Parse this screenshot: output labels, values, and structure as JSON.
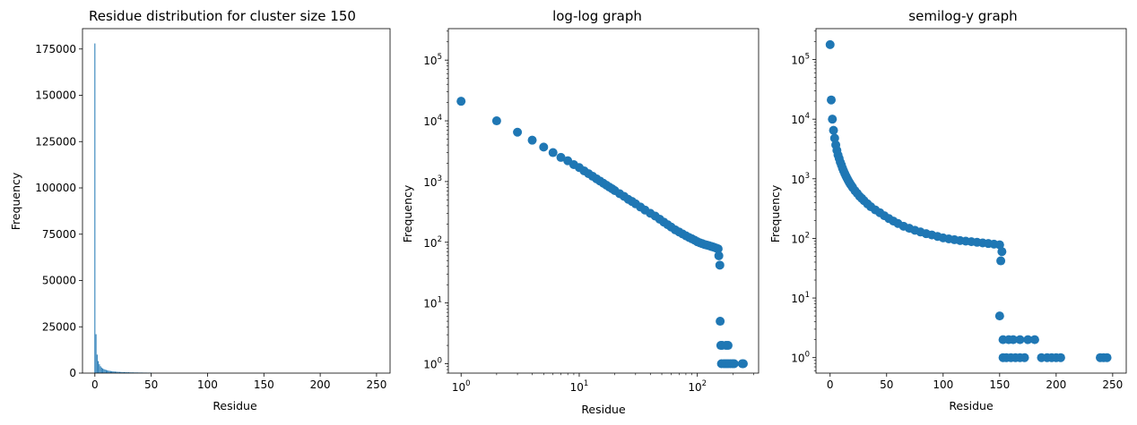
{
  "chart_data": [
    {
      "type": "bar",
      "title": "Residue distribution for cluster size 150",
      "xlabel": "Residue",
      "ylabel": "Frequency",
      "xlim": [
        -11,
        262
      ],
      "ylim": [
        0,
        186000
      ],
      "xticks": [
        0,
        50,
        100,
        150,
        200,
        250
      ],
      "yticks": [
        0,
        25000,
        50000,
        75000,
        100000,
        125000,
        150000,
        175000
      ],
      "color": "#1f77b4",
      "x": [
        0,
        1,
        2,
        3,
        4,
        5,
        6,
        7,
        8,
        9,
        10,
        11,
        12,
        13,
        14,
        15,
        16,
        17,
        18,
        19,
        20,
        21,
        22,
        23,
        24,
        25,
        26,
        27,
        28,
        29,
        30,
        31,
        32,
        33,
        34,
        35,
        36,
        37,
        38,
        39,
        40,
        41,
        42,
        43,
        44,
        45,
        46,
        47,
        48,
        49,
        50
      ],
      "values": [
        178000,
        21000,
        10000,
        6500,
        4800,
        3700,
        3000,
        2500,
        2200,
        1900,
        1700,
        1500,
        1350,
        1220,
        1110,
        1020,
        940,
        870,
        810,
        760,
        710,
        670,
        630,
        600,
        570,
        540,
        510,
        490,
        470,
        450,
        430,
        410,
        395,
        380,
        365,
        350,
        340,
        330,
        318,
        307,
        297,
        287,
        278,
        270,
        262,
        255,
        248,
        241,
        235,
        229,
        223
      ]
    },
    {
      "type": "scatter",
      "title": "log-log graph",
      "xlabel": "Residue",
      "ylabel": "Frequency",
      "xscale": "log",
      "yscale": "log",
      "xlim": [
        0.78,
        330
      ],
      "ylim": [
        0.7,
        330000
      ],
      "xticks": [
        "10^0",
        "10^1",
        "10^2"
      ],
      "yticks": [
        "10^0",
        "10^1",
        "10^2",
        "10^3",
        "10^4",
        "10^5"
      ],
      "color": "#1f77b4",
      "points": [
        [
          1,
          21000
        ],
        [
          2,
          10000
        ],
        [
          3,
          6500
        ],
        [
          4,
          4800
        ],
        [
          5,
          3700
        ],
        [
          6,
          3000
        ],
        [
          7,
          2500
        ],
        [
          8,
          2200
        ],
        [
          9,
          1900
        ],
        [
          10,
          1700
        ],
        [
          11,
          1500
        ],
        [
          12,
          1350
        ],
        [
          13,
          1220
        ],
        [
          14,
          1110
        ],
        [
          15,
          1020
        ],
        [
          16,
          940
        ],
        [
          17,
          870
        ],
        [
          18,
          810
        ],
        [
          19,
          760
        ],
        [
          20,
          710
        ],
        [
          22,
          630
        ],
        [
          24,
          570
        ],
        [
          26,
          510
        ],
        [
          28,
          470
        ],
        [
          30,
          430
        ],
        [
          33,
          380
        ],
        [
          36,
          340
        ],
        [
          40,
          300
        ],
        [
          44,
          270
        ],
        [
          48,
          240
        ],
        [
          52,
          215
        ],
        [
          56,
          195
        ],
        [
          60,
          178
        ],
        [
          65,
          160
        ],
        [
          70,
          148
        ],
        [
          75,
          137
        ],
        [
          80,
          128
        ],
        [
          85,
          120
        ],
        [
          90,
          114
        ],
        [
          95,
          108
        ],
        [
          100,
          102
        ],
        [
          105,
          98
        ],
        [
          110,
          95
        ],
        [
          115,
          92
        ],
        [
          120,
          90
        ],
        [
          125,
          88
        ],
        [
          130,
          86
        ],
        [
          135,
          84
        ],
        [
          140,
          82
        ],
        [
          145,
          80
        ],
        [
          150,
          78
        ],
        [
          152,
          60
        ],
        [
          155,
          42
        ],
        [
          156,
          5
        ],
        [
          158,
          2
        ],
        [
          162,
          2
        ],
        [
          175,
          2
        ],
        [
          182,
          2
        ],
        [
          160,
          1
        ],
        [
          168,
          1
        ],
        [
          175,
          1
        ],
        [
          182,
          1
        ],
        [
          190,
          1
        ],
        [
          198,
          1
        ],
        [
          205,
          1
        ],
        [
          240,
          1
        ],
        [
          245,
          1
        ]
      ]
    },
    {
      "type": "scatter",
      "title": "semilog-y graph",
      "xlabel": "Residue",
      "ylabel": "Frequency",
      "yscale": "log",
      "xlim": [
        -12.5,
        262
      ],
      "ylim": [
        0.55,
        330000
      ],
      "xticks": [
        0,
        50,
        100,
        150,
        200,
        250
      ],
      "yticks": [
        "10^0",
        "10^1",
        "10^2",
        "10^3",
        "10^4",
        "10^5"
      ],
      "color": "#1f77b4",
      "points": [
        [
          0,
          178000
        ],
        [
          1,
          21000
        ],
        [
          2,
          10000
        ],
        [
          3,
          6500
        ],
        [
          4,
          4800
        ],
        [
          5,
          3700
        ],
        [
          6,
          3000
        ],
        [
          7,
          2500
        ],
        [
          8,
          2200
        ],
        [
          9,
          1900
        ],
        [
          10,
          1700
        ],
        [
          11,
          1500
        ],
        [
          12,
          1350
        ],
        [
          13,
          1220
        ],
        [
          14,
          1110
        ],
        [
          15,
          1020
        ],
        [
          16,
          940
        ],
        [
          17,
          870
        ],
        [
          18,
          810
        ],
        [
          19,
          760
        ],
        [
          20,
          710
        ],
        [
          22,
          630
        ],
        [
          24,
          570
        ],
        [
          26,
          510
        ],
        [
          28,
          470
        ],
        [
          30,
          430
        ],
        [
          33,
          380
        ],
        [
          36,
          340
        ],
        [
          40,
          300
        ],
        [
          44,
          270
        ],
        [
          48,
          240
        ],
        [
          52,
          215
        ],
        [
          56,
          195
        ],
        [
          60,
          178
        ],
        [
          65,
          160
        ],
        [
          70,
          148
        ],
        [
          75,
          137
        ],
        [
          80,
          128
        ],
        [
          85,
          120
        ],
        [
          90,
          114
        ],
        [
          95,
          108
        ],
        [
          100,
          102
        ],
        [
          105,
          98
        ],
        [
          110,
          95
        ],
        [
          115,
          92
        ],
        [
          120,
          90
        ],
        [
          125,
          88
        ],
        [
          130,
          86
        ],
        [
          135,
          84
        ],
        [
          140,
          82
        ],
        [
          145,
          80
        ],
        [
          150,
          78
        ],
        [
          152,
          60
        ],
        [
          151,
          42
        ],
        [
          150,
          5
        ],
        [
          153,
          2
        ],
        [
          158,
          2
        ],
        [
          162,
          2
        ],
        [
          168,
          2
        ],
        [
          175,
          2
        ],
        [
          181,
          2
        ],
        [
          153,
          1
        ],
        [
          156,
          1
        ],
        [
          160,
          1
        ],
        [
          164,
          1
        ],
        [
          168,
          1
        ],
        [
          172,
          1
        ],
        [
          187,
          1
        ],
        [
          192,
          1
        ],
        [
          196,
          1
        ],
        [
          200,
          1
        ],
        [
          204,
          1
        ],
        [
          239,
          1
        ],
        [
          242,
          1
        ],
        [
          245,
          1
        ]
      ]
    }
  ]
}
